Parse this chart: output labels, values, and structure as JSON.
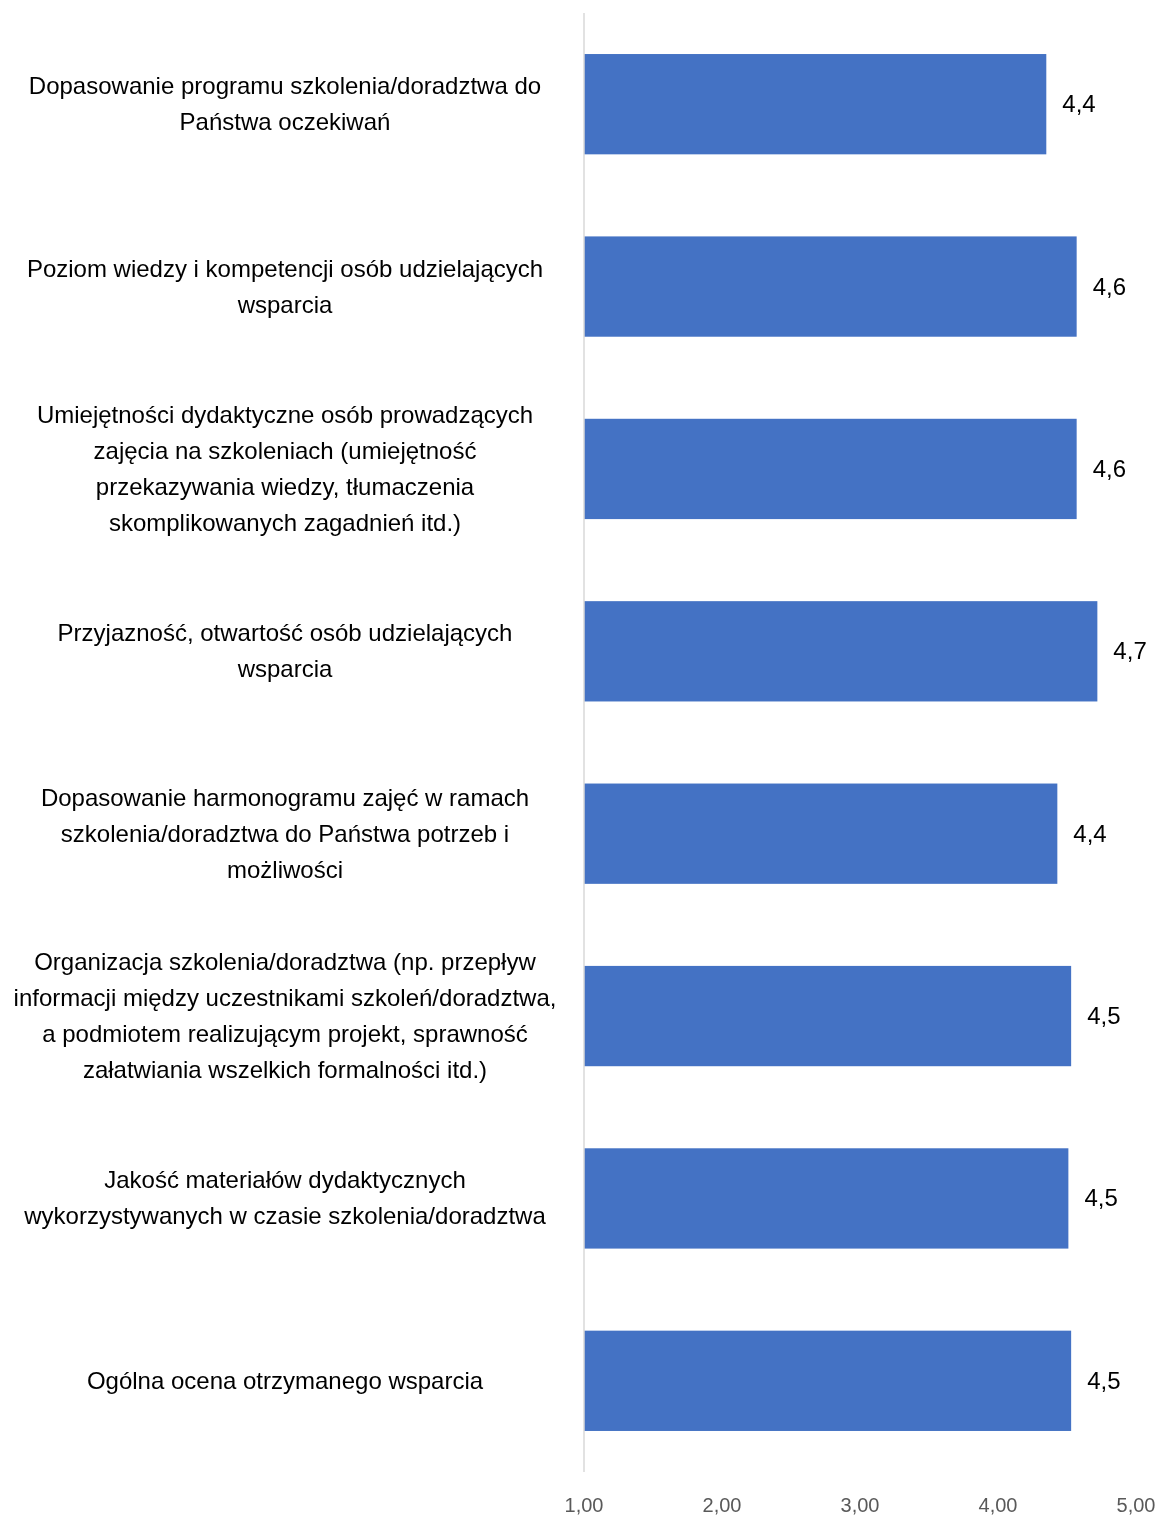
{
  "chart_data": {
    "type": "bar",
    "orientation": "horizontal",
    "categories": [
      "Dopasowanie programu szkolenia/doradztwa do Państwa oczekiwań",
      "Poziom wiedzy i kompetencji osób udzielających wsparcia",
      "Umiejętności dydaktyczne osób prowadzących zajęcia na szkoleniach (umiejętność przekazywania wiedzy, tłumaczenia skomplikowanych zagadnień itd.)",
      "Przyjazność, otwartość osób udzielających wsparcia",
      "Dopasowanie harmonogramu zajęć w ramach szkolenia/doradztwa do Państwa potrzeb i możliwości",
      "Organizacja szkolenia/doradztwa (np. przepływ informacji między uczestnikami szkoleń/doradztwa, a podmiotem realizującym projekt, sprawność załatwiania wszelkich formalności itd.)",
      "Jakość materiałów dydaktycznych wykorzystywanych w czasie szkolenia/doradztwa",
      "Ogólna ocena otrzymanego wsparcia"
    ],
    "values": [
      4.35,
      4.57,
      4.57,
      4.72,
      4.43,
      4.53,
      4.51,
      4.53
    ],
    "value_labels": [
      "4,4",
      "4,6",
      "4,6",
      "4,7",
      "4,4",
      "4,5",
      "4,5",
      "4,5"
    ],
    "color": "#4472c4",
    "xlim": [
      1,
      5
    ],
    "xticks": [
      {
        "value": 1,
        "label": "1,00"
      },
      {
        "value": 2,
        "label": "2,00"
      },
      {
        "value": 3,
        "label": "3,00"
      },
      {
        "value": 4,
        "label": "4,00"
      },
      {
        "value": 5,
        "label": "5,00"
      }
    ],
    "grid": false
  }
}
